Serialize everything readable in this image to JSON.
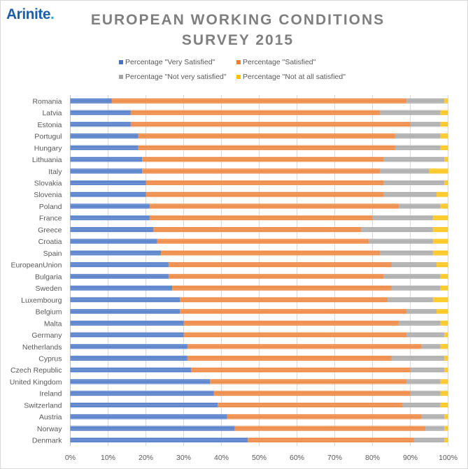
{
  "logo": {
    "text": "Arinite",
    "dot": "."
  },
  "chart_data": {
    "type": "bar",
    "orientation": "horizontal",
    "stacked": "100%",
    "title_line1": "EUROPEAN WORKING CONDITIONS",
    "title_line2": "SURVEY 2015",
    "xlim": [
      0,
      100
    ],
    "x_ticks": [
      "0%",
      "10%",
      "20%",
      "30%",
      "40%",
      "50%",
      "60%",
      "70%",
      "80%",
      "90%",
      "100%"
    ],
    "grid": "vertical",
    "legend_position": "top",
    "categories": [
      "Romania",
      "Latvia",
      "Estonia",
      "Portugul",
      "Hungary",
      "Lithuania",
      "Italy",
      "Slovakia",
      "Slovenia",
      "Poland",
      "France",
      "Greece",
      "Croatia",
      "Spain",
      "EuropeanUnion",
      "Bulgaria",
      "Sweden",
      "Luxembourg",
      "Belgium",
      "Malta",
      "Germany",
      "Netherlands",
      "Cyprus",
      "Czech Republic",
      "United Kingdom",
      "Ireland",
      "Switzerland",
      "Austria",
      "Norway",
      "Denmark"
    ],
    "series": [
      {
        "name": "Percentage \"Very Satisfied\"",
        "color": "#4472C4",
        "values": [
          11,
          16,
          16,
          18,
          18,
          19,
          19,
          20,
          20,
          21,
          21,
          22,
          23,
          24,
          26,
          26,
          27,
          29,
          29,
          30,
          30,
          31,
          31,
          32,
          37,
          38,
          39,
          41.5,
          43.5,
          47
        ]
      },
      {
        "name": "Percentage \"Satisfied\"",
        "color": "#ED7D31",
        "values": [
          78,
          66,
          74,
          68,
          68,
          64,
          63,
          63,
          63,
          66,
          59,
          55,
          56,
          58,
          59,
          57,
          58,
          55,
          60,
          57,
          59,
          62,
          54,
          58,
          52,
          52,
          49,
          51.5,
          50.5,
          44
        ]
      },
      {
        "name": "Percentage \"Not very satisfied\"",
        "color": "#A5A5A5",
        "values": [
          10,
          16,
          8,
          12,
          12,
          16,
          13,
          16,
          14,
          11,
          16,
          19,
          17,
          14,
          12,
          15,
          13,
          12,
          8,
          11,
          10,
          5,
          14,
          9,
          9,
          8,
          10,
          6,
          5,
          8
        ]
      },
      {
        "name": "Percentage \"Not at all satisfied\"",
        "color": "#FFC000",
        "values": [
          1,
          2,
          2,
          2,
          2,
          1,
          5,
          1,
          3,
          2,
          4,
          4,
          4,
          4,
          3,
          2,
          2,
          4,
          3,
          2,
          1,
          2,
          1,
          1,
          2,
          2,
          2,
          1,
          1,
          1
        ]
      }
    ]
  }
}
